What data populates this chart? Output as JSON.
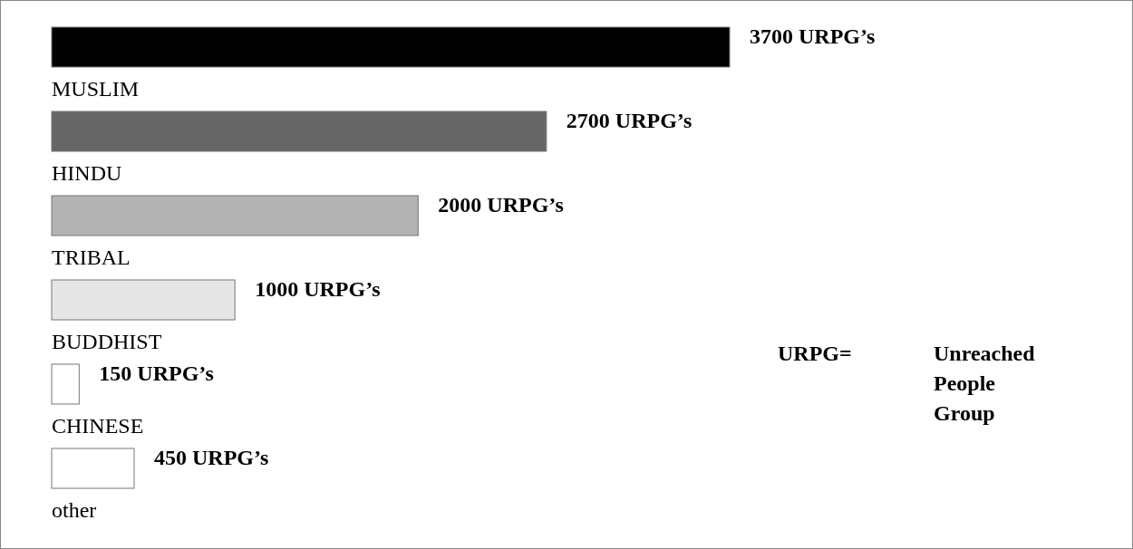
{
  "chart_data": {
    "type": "bar",
    "orientation": "horizontal",
    "categories": [
      "MUSLIM",
      "HINDU",
      "TRIBAL",
      "BUDDHIST",
      "CHINESE",
      "other"
    ],
    "values": [
      3700,
      2700,
      2000,
      1000,
      150,
      450
    ],
    "colors": [
      "#000000",
      "#666666",
      "#b3b3b3",
      "#e6e6e6",
      "#ffffff",
      "#ffffff"
    ],
    "value_labels": [
      "3700 URPG’s",
      "2700 URPG’s",
      "2000 URPG’s",
      "1000 URPG’s",
      "150 URPG’s",
      "450 URPG’s"
    ],
    "annotations": [
      "URPG=",
      "Unreached People Group"
    ]
  }
}
